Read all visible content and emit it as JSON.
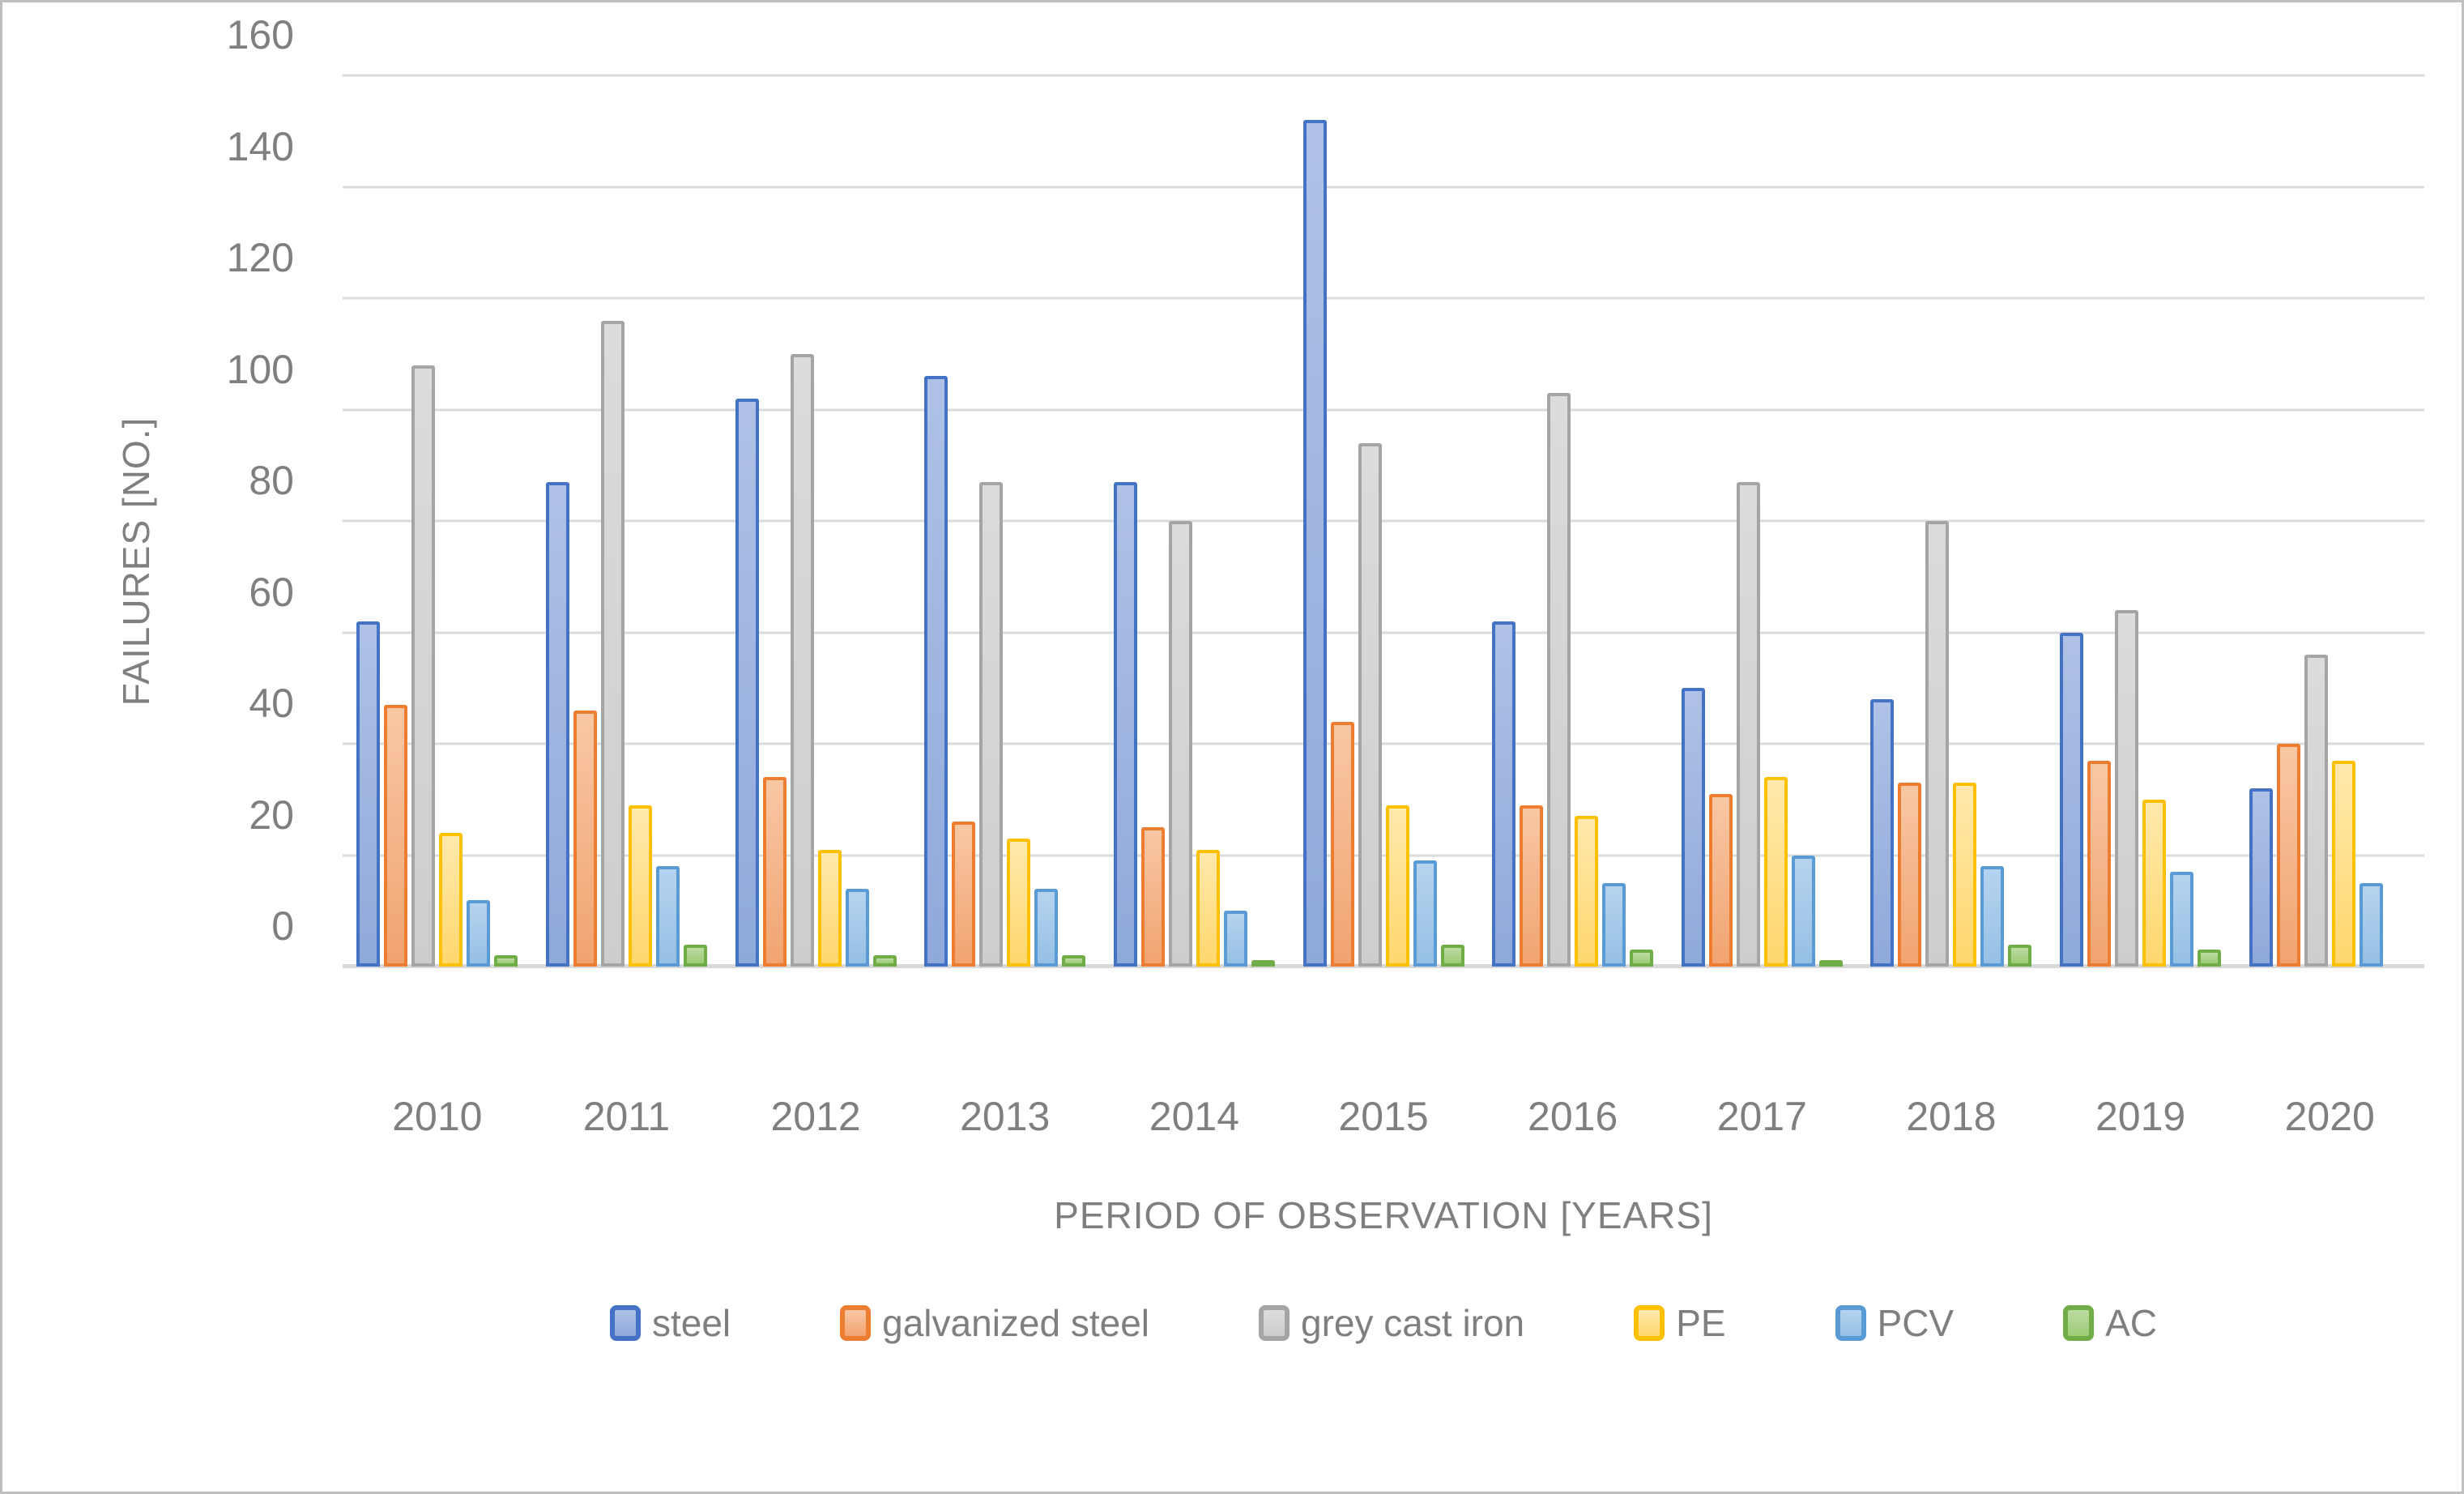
{
  "chart_data": {
    "type": "bar",
    "title": "",
    "xlabel": "PERIOD OF OBSERVATION [YEARS]",
    "ylabel": "FAILURES [NO.]",
    "categories": [
      "2010",
      "2011",
      "2012",
      "2013",
      "2014",
      "2015",
      "2016",
      "2017",
      "2018",
      "2019",
      "2020"
    ],
    "series": [
      {
        "name": "steel",
        "border_color": "#4472C4",
        "fill_light": "#AFC1E6",
        "fill_color": "#8FA9DB",
        "values": [
          62,
          87,
          102,
          106,
          87,
          152,
          62,
          50,
          48,
          60,
          32
        ]
      },
      {
        "name": "galvanized steel",
        "border_color": "#ED7D31",
        "fill_light": "#F8C7A4",
        "fill_color": "#F1A471",
        "values": [
          47,
          46,
          34,
          26,
          25,
          44,
          29,
          31,
          33,
          37,
          40
        ]
      },
      {
        "name": "grey cast iron",
        "border_color": "#A5A5A5",
        "fill_light": "#DCDCDC",
        "fill_color": "#CDCDCD",
        "values": [
          108,
          116,
          110,
          87,
          80,
          94,
          103,
          87,
          80,
          64,
          56
        ]
      },
      {
        "name": "PE",
        "border_color": "#FFC000",
        "fill_light": "#FFE9AC",
        "fill_color": "#FFD76E",
        "values": [
          24,
          29,
          21,
          23,
          21,
          29,
          27,
          34,
          33,
          30,
          37
        ]
      },
      {
        "name": "PCV",
        "border_color": "#5B9BD5",
        "fill_light": "#B6D3EE",
        "fill_color": "#96C0E5",
        "values": [
          12,
          18,
          14,
          14,
          10,
          19,
          15,
          20,
          18,
          17,
          15
        ]
      },
      {
        "name": "AC",
        "border_color": "#70AD47",
        "fill_light": "#BCDBA1",
        "fill_color": "#9DCB76",
        "values": [
          2,
          4,
          2,
          2,
          1,
          4,
          3,
          1,
          4,
          3,
          0
        ]
      }
    ],
    "ylim": [
      0,
      160
    ],
    "yticks": [
      0,
      20,
      40,
      60,
      80,
      100,
      120,
      140,
      160
    ],
    "grid": true,
    "legend_position": "bottom",
    "gridline_color": "#DBDBDB",
    "axis_line_color": "#D9D9D9",
    "text_color": "#7F7F7F",
    "figure_border_color": "#BFBFBF"
  }
}
